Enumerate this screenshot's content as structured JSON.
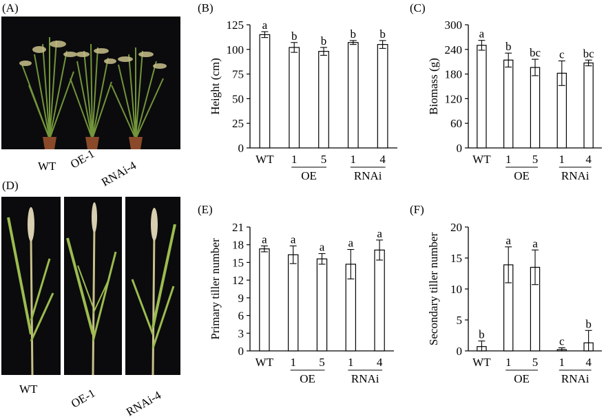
{
  "panels": {
    "a": "(A)",
    "b": "(B)",
    "c": "(C)",
    "d": "(D)",
    "e": "(E)",
    "f": "(F)"
  },
  "photo_a_labels": [
    "WT",
    "OE-1",
    "RNAi-4"
  ],
  "photo_d_labels": [
    "WT",
    "OE-1",
    "RNAi-4"
  ],
  "colors": {
    "bar_fill": "#ffffff",
    "stroke": "#000000",
    "photo_bg": "#0b0b0d",
    "plant_green": "#8fb04a",
    "panicle": "#c9c08a",
    "pot": "#8a4a2a"
  },
  "chart_data": [
    {
      "id": "B",
      "type": "bar",
      "ylabel": "Height (cm)",
      "ylim": [
        0,
        125
      ],
      "yticks": [
        "0",
        "25",
        "50",
        "75",
        "100",
        "125"
      ],
      "categories": [
        "WT",
        "1",
        "5",
        "1",
        "4"
      ],
      "groups": [
        {
          "label": "OE",
          "members": [
            1,
            2
          ]
        },
        {
          "label": "RNAi",
          "members": [
            3,
            4
          ]
        }
      ],
      "values": [
        115,
        102,
        98,
        107,
        105
      ],
      "errors": [
        3,
        5,
        4,
        2,
        4
      ],
      "sig_letters": [
        "a",
        "b",
        "b",
        "b",
        "b"
      ]
    },
    {
      "id": "C",
      "type": "bar",
      "ylabel": "Biomass (g)",
      "ylim": [
        0,
        300
      ],
      "yticks": [
        "0",
        "60",
        "120",
        "180",
        "240",
        "300"
      ],
      "categories": [
        "WT",
        "1",
        "5",
        "1",
        "4"
      ],
      "groups": [
        {
          "label": "OE",
          "members": [
            1,
            2
          ]
        },
        {
          "label": "RNAi",
          "members": [
            3,
            4
          ]
        }
      ],
      "values": [
        250,
        214,
        196,
        182,
        207
      ],
      "errors": [
        12,
        17,
        20,
        30,
        7
      ],
      "sig_letters": [
        "a",
        "b",
        "bc",
        "c",
        "bc"
      ]
    },
    {
      "id": "E",
      "type": "bar",
      "ylabel": "Primary tiller number",
      "ylim": [
        0,
        21
      ],
      "yticks": [
        "0",
        "3",
        "6",
        "9",
        "12",
        "15",
        "18",
        "21"
      ],
      "categories": [
        "WT",
        "1",
        "5",
        "1",
        "4"
      ],
      "groups": [
        {
          "label": "OE",
          "members": [
            1,
            2
          ]
        },
        {
          "label": "RNAi",
          "members": [
            3,
            4
          ]
        }
      ],
      "values": [
        17.3,
        16.3,
        15.6,
        14.7,
        17.1
      ],
      "errors": [
        0.5,
        1.5,
        0.9,
        2.5,
        1.7
      ],
      "sig_letters": [
        "a",
        "a",
        "a",
        "a",
        "a"
      ]
    },
    {
      "id": "F",
      "type": "bar",
      "ylabel": "Secondary tiller number",
      "ylim": [
        0,
        20
      ],
      "yticks": [
        "0",
        "5",
        "10",
        "15",
        "20"
      ],
      "categories": [
        "WT",
        "1",
        "5",
        "1",
        "4"
      ],
      "groups": [
        {
          "label": "OE",
          "members": [
            1,
            2
          ]
        },
        {
          "label": "RNAi",
          "members": [
            3,
            4
          ]
        }
      ],
      "values": [
        0.7,
        13.9,
        13.5,
        0.2,
        1.3
      ],
      "errors": [
        0.9,
        2.9,
        2.8,
        0.3,
        2.0
      ],
      "sig_letters": [
        "b",
        "a",
        "a",
        "c",
        "b"
      ]
    }
  ]
}
